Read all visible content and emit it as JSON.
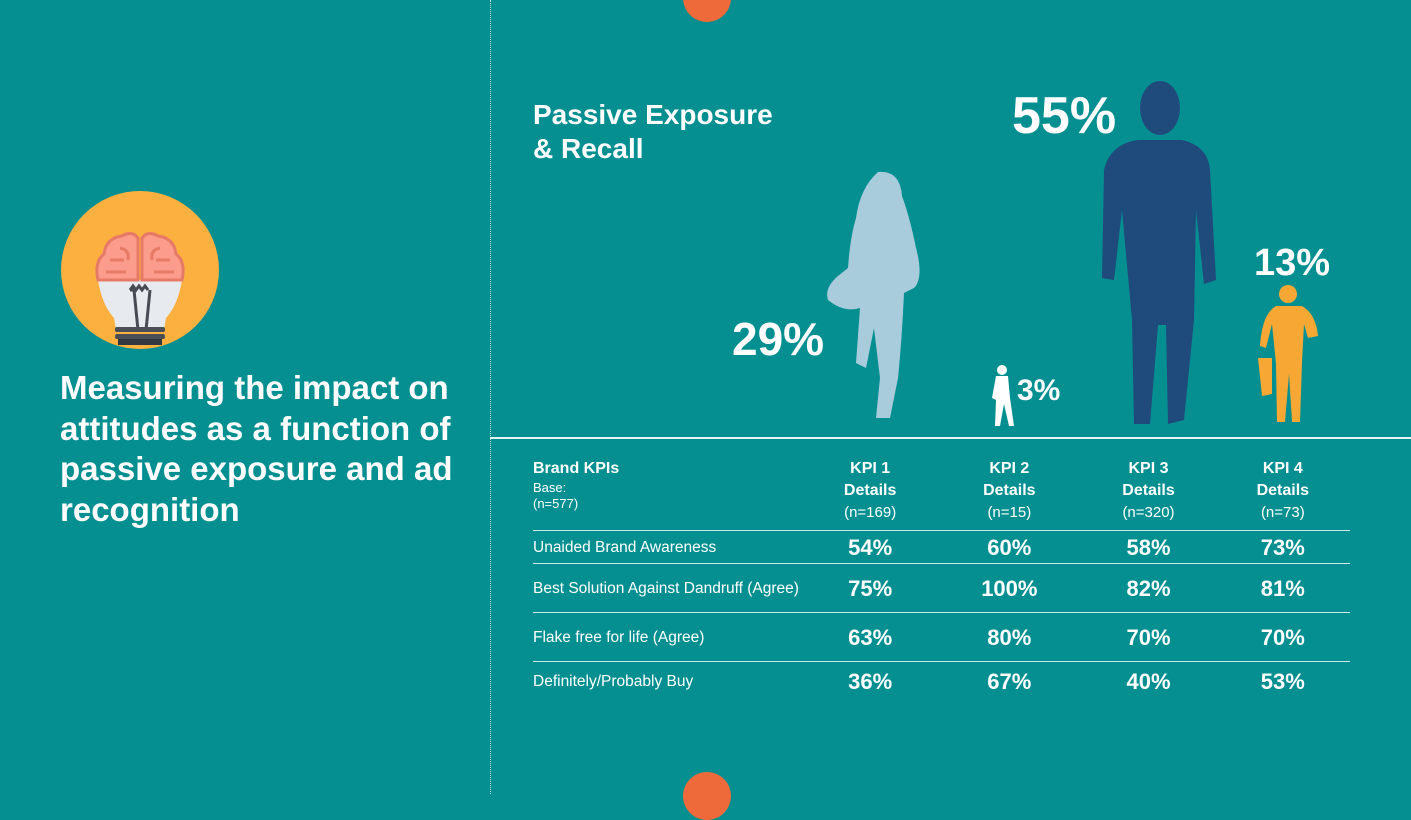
{
  "headline": "Measuring the impact on attitudes as a function of passive exposure and ad recognition",
  "section_title": [
    "Passive Exposure",
    "& Recall"
  ],
  "figures": [
    {
      "label": "29%",
      "color": "#a9ccdd"
    },
    {
      "label": "3%",
      "color": "#ffffff"
    },
    {
      "label": "55%",
      "color": "#1f4a7c"
    },
    {
      "label": "13%",
      "color": "#f7a834"
    }
  ],
  "colors": {
    "background": "#058f91",
    "accent": "#ee6a3a",
    "bulb_circle": "#fbb040"
  },
  "table": {
    "header_label": "Brand KPIs",
    "base_label": "Base:",
    "base_n": "(n=577)",
    "columns": [
      {
        "title": "KPI 1",
        "sub": "Details",
        "n": "(n=169)"
      },
      {
        "title": "KPI 2",
        "sub": "Details",
        "n": "(n=15)"
      },
      {
        "title": "KPI 3",
        "sub": "Details",
        "n": "(n=320)"
      },
      {
        "title": "KPI 4",
        "sub": "Details",
        "n": "(n=73)"
      }
    ],
    "rows": [
      {
        "label": "Unaided Brand Awareness",
        "values": [
          "54%",
          "60%",
          "58%",
          "73%"
        ]
      },
      {
        "label": "Best Solution Against Dandruff (Agree)",
        "values": [
          "75%",
          "100%",
          "82%",
          "81%"
        ]
      },
      {
        "label": "Flake free for life (Agree)",
        "values": [
          "63%",
          "80%",
          "70%",
          "70%"
        ]
      },
      {
        "label": "Definitely/Probably Buy",
        "values": [
          "36%",
          "67%",
          "40%",
          "53%"
        ]
      }
    ]
  }
}
